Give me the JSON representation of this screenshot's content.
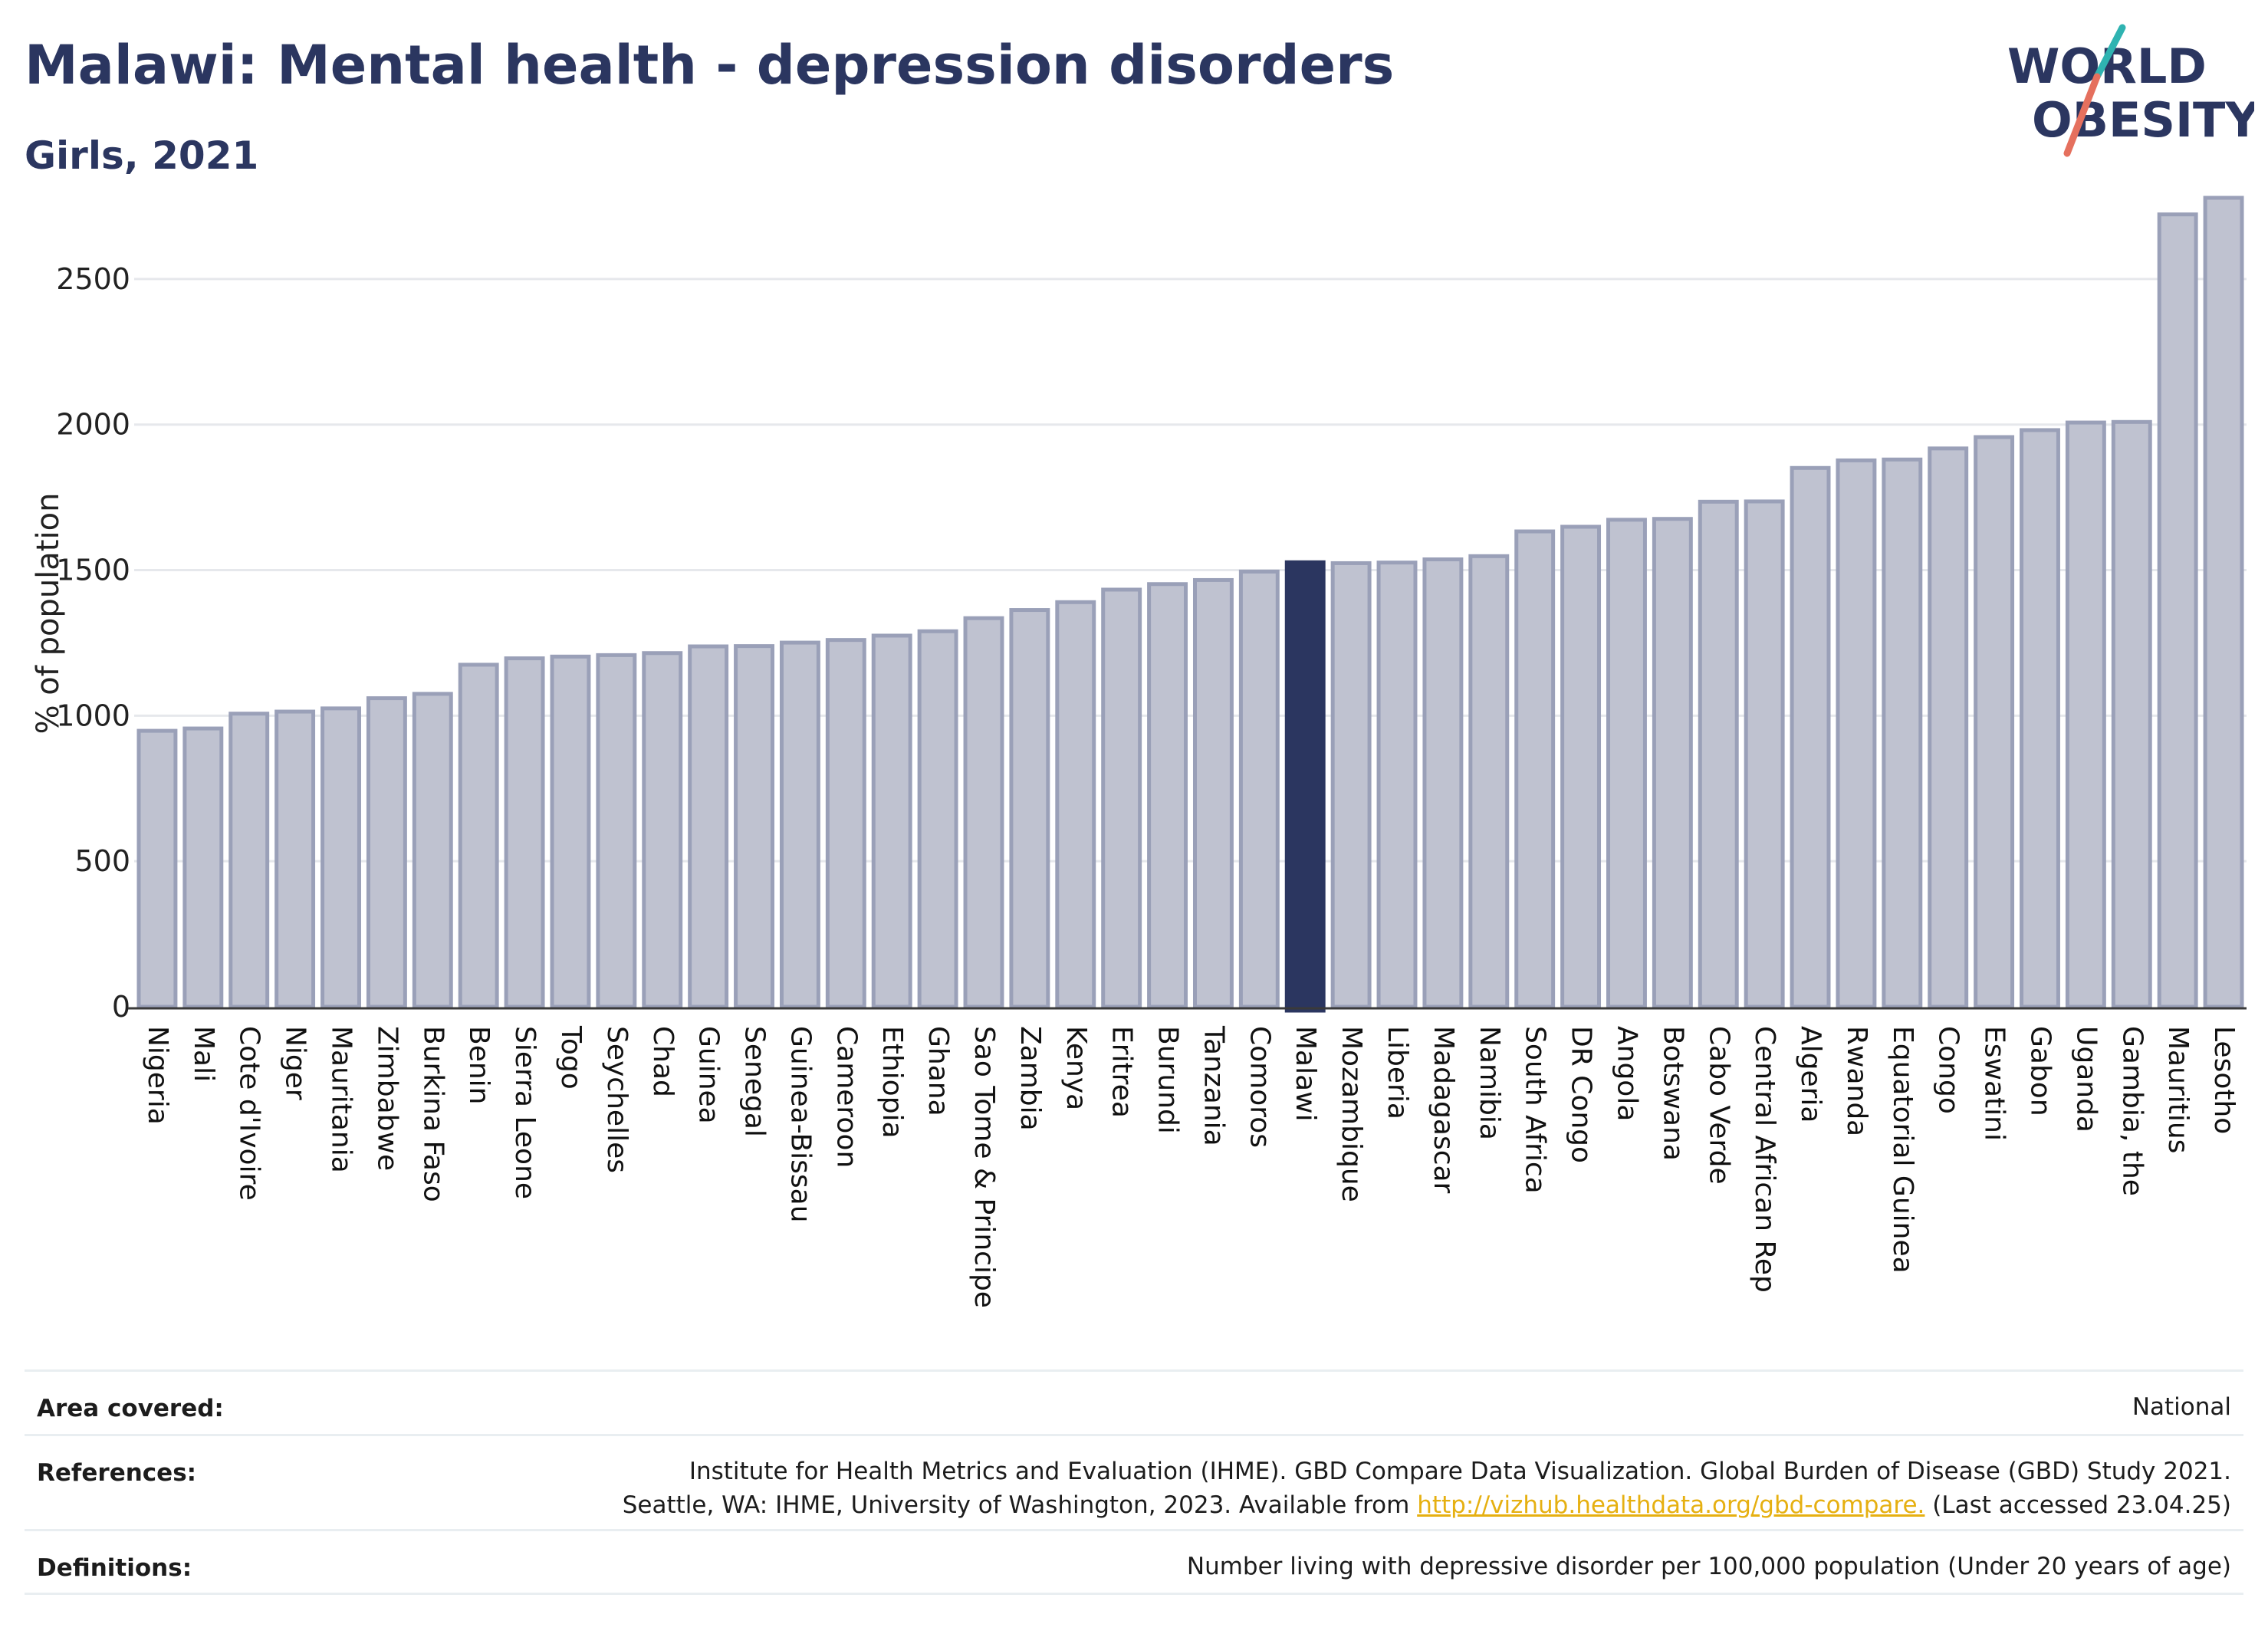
{
  "title": "Malawi: Mental health - depression disorders",
  "subtitle": "Girls, 2021",
  "logo": {
    "line1": "WORLD",
    "line2": "OBESITY"
  },
  "colors": {
    "bar": "#bfc2d0",
    "bar_stroke": "#9aa0b8",
    "highlight": "#2b3660",
    "title": "#2b3660",
    "grid": "#e6e8ec",
    "axis": "#3a3a3a",
    "logo_teal": "#2fb3b1",
    "logo_coral": "#e5705e",
    "link": "#e6b011"
  },
  "chart_data": {
    "type": "bar",
    "ylabel": "% of population",
    "ylim": [
      0,
      2800
    ],
    "yticks": [
      0,
      500,
      1000,
      1500,
      2000,
      2500
    ],
    "grid": true,
    "highlight": "Malawi",
    "categories": [
      "Nigeria",
      "Mali",
      "Cote d'Ivoire",
      "Niger",
      "Mauritania",
      "Zimbabwe",
      "Burkina Faso",
      "Benin",
      "Sierra Leone",
      "Togo",
      "Seychelles",
      "Chad",
      "Guinea",
      "Senegal",
      "Guinea-Bissau",
      "Cameroon",
      "Ethiopia",
      "Ghana",
      "Sao Tome & Principe",
      "Zambia",
      "Kenya",
      "Eritrea",
      "Burundi",
      "Tanzania",
      "Comoros",
      "Malawi",
      "Mozambique",
      "Liberia",
      "Madagascar",
      "Namibia",
      "South Africa",
      "DR Congo",
      "Angola",
      "Botswana",
      "Cabo Verde",
      "Central African Rep",
      "Algeria",
      "Rwanda",
      "Equatorial Guinea",
      "Congo",
      "Eswatini",
      "Gabon",
      "Uganda",
      "Gambia, the",
      "Mauritius",
      "Lesotho"
    ],
    "values": [
      948,
      956,
      1007,
      1014,
      1025,
      1060,
      1075,
      1175,
      1197,
      1203,
      1208,
      1215,
      1238,
      1239,
      1251,
      1260,
      1275,
      1290,
      1335,
      1363,
      1390,
      1433,
      1452,
      1466,
      1495,
      1527,
      1524,
      1526,
      1537,
      1548,
      1633,
      1649,
      1673,
      1676,
      1735,
      1736,
      1851,
      1877,
      1880,
      1918,
      1957,
      1981,
      2007,
      2009,
      2722,
      2779
    ]
  },
  "footer": {
    "area_label": "Area covered:",
    "area_value": "National",
    "references_label": "References:",
    "references_line1": "Institute for Health Metrics and Evaluation (IHME). GBD Compare Data Visualization. Global Burden of Disease (GBD) Study 2021.",
    "references_line2_pre": "Seattle, WA: IHME, University of Washington, 2023. Available from ",
    "references_link": "http://vizhub.healthdata.org/gbd-compare.",
    "references_line2_post": " (Last accessed 23.04.25)",
    "definitions_label": "Definitions:",
    "definitions_value": "Number living with depressive disorder per 100,000 population (Under 20 years of age)"
  }
}
